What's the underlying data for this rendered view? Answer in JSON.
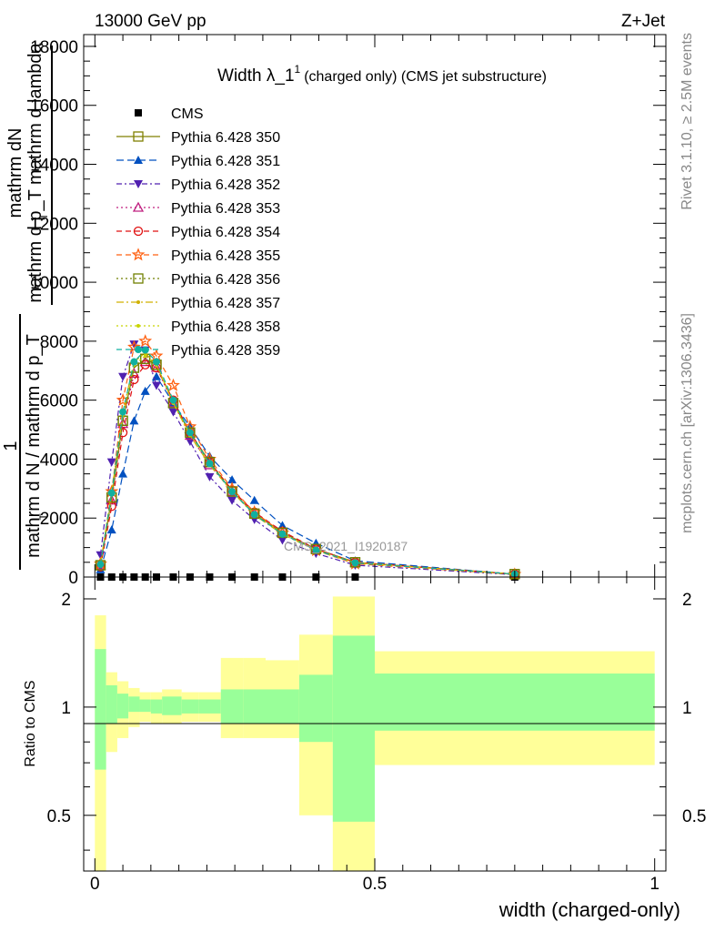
{
  "header": {
    "left": "13000 GeV pp",
    "right": "Z+Jet"
  },
  "main_plot": {
    "title_main": "Width λ_1",
    "title_sup": "1",
    "title_sub": "(charged only) (CMS jet substructure)",
    "ylabel_lines": [
      "mathrm dN",
      "mathrm d p_T mathrm d lambda",
      "1",
      "mathrm d N / mathrm d p_T"
    ],
    "ylabel_T": "T",
    "watermark": "CMS_2021_I1920187"
  },
  "ratio_plot": {
    "ylabel": "Ratio to CMS",
    "xlabel": "width (charged-only)"
  },
  "side_labels": {
    "rivet": "Rivet 3.1.10, ≥ 2.5M events",
    "mcplots": "mcplots.cern.ch [arXiv:1306.3436]"
  },
  "chart_data": {
    "type": "line",
    "xlim": [
      -0.02,
      1.02
    ],
    "ylim_main": [
      0,
      18400
    ],
    "yticks_main": [
      0,
      2000,
      4000,
      6000,
      8000,
      10000,
      12000,
      14000,
      16000,
      18000
    ],
    "ylim_ratio": [
      0.35,
      2.3
    ],
    "yticks_ratio": [
      0.5,
      1,
      2
    ],
    "xticks": [
      0,
      0.5,
      1
    ],
    "x": [
      0.01,
      0.03,
      0.05,
      0.07,
      0.09,
      0.11,
      0.14,
      0.17,
      0.205,
      0.245,
      0.285,
      0.335,
      0.395,
      0.465,
      0.75
    ],
    "bin_edges": [
      0.0,
      0.02,
      0.04,
      0.06,
      0.08,
      0.1,
      0.12,
      0.155,
      0.185,
      0.225,
      0.265,
      0.305,
      0.365,
      0.425,
      0.5,
      1.0
    ],
    "series": [
      {
        "name": "CMS",
        "color": "#000000",
        "marker": "square-filled",
        "dash": "none",
        "values": [
          0,
          0,
          0,
          0,
          0,
          0,
          0,
          0,
          0,
          0,
          0,
          0,
          0,
          0,
          0
        ]
      },
      {
        "name": "Pythia 6.428 350",
        "color": "#808000",
        "marker": "square-open",
        "dash": "solid",
        "values": [
          400,
          2700,
          5300,
          7100,
          7400,
          7200,
          5900,
          4900,
          3900,
          2900,
          2150,
          1500,
          950,
          500,
          100
        ]
      },
      {
        "name": "Pythia 6.428 351",
        "color": "#0050c0",
        "marker": "triangle-up-filled",
        "dash": "8,4",
        "values": [
          250,
          1600,
          3500,
          5300,
          6300,
          6800,
          5900,
          5100,
          4100,
          3300,
          2600,
          1750,
          1150,
          550,
          100
        ]
      },
      {
        "name": "Pythia 6.428 352",
        "color": "#5020b0",
        "marker": "triangle-down-filled",
        "dash": "6,3,2,3",
        "values": [
          750,
          3900,
          6800,
          7900,
          7700,
          6500,
          5600,
          4600,
          3400,
          2600,
          1950,
          1250,
          800,
          400,
          80
        ]
      },
      {
        "name": "Pythia 6.428 353",
        "color": "#c02080",
        "marker": "triangle-up-open",
        "dash": "2,3",
        "values": [
          400,
          2600,
          5200,
          6900,
          7300,
          7100,
          5900,
          4800,
          3800,
          2900,
          2150,
          1500,
          950,
          500,
          100
        ]
      },
      {
        "name": "Pythia 6.428 354",
        "color": "#e01010",
        "marker": "circle-open",
        "dash": "6,4",
        "values": [
          350,
          2400,
          4900,
          6700,
          7200,
          7100,
          6000,
          4900,
          3900,
          2950,
          2200,
          1550,
          950,
          500,
          100
        ]
      },
      {
        "name": "Pythia 6.428 355",
        "color": "#ff6010",
        "marker": "star-open",
        "dash": "6,4",
        "values": [
          450,
          2900,
          6000,
          7800,
          8000,
          7500,
          6500,
          5100,
          4000,
          3000,
          2200,
          1500,
          900,
          450,
          90
        ]
      },
      {
        "name": "Pythia 6.428 356",
        "color": "#708000",
        "marker": "square-open",
        "dash": "2,3",
        "values": [
          400,
          2700,
          5300,
          7100,
          7400,
          7200,
          5900,
          4900,
          3900,
          2900,
          2150,
          1500,
          950,
          500,
          100
        ]
      },
      {
        "name": "Pythia 6.428 357",
        "color": "#d0b000",
        "marker": "dot",
        "dash": "8,3,2,3",
        "values": [
          450,
          2900,
          5600,
          7300,
          7600,
          7200,
          5900,
          4800,
          3800,
          2900,
          2100,
          1450,
          900,
          480,
          100
        ]
      },
      {
        "name": "Pythia 6.428 358",
        "color": "#c8d400",
        "marker": "dot",
        "dash": "2,3",
        "values": [
          420,
          2800,
          5500,
          7200,
          7500,
          7200,
          5900,
          4850,
          3850,
          2900,
          2150,
          1480,
          920,
          490,
          100
        ]
      },
      {
        "name": "Pythia 6.428 359",
        "color": "#10b0a0",
        "marker": "circle-filled",
        "dash": "6,4",
        "values": [
          430,
          2850,
          5600,
          7300,
          7700,
          7300,
          6000,
          4900,
          3850,
          2900,
          2120,
          1460,
          910,
          480,
          100
        ]
      }
    ],
    "ratio_bands": {
      "inner": [
        [
          0.67,
          1.45
        ],
        [
          0.9,
          1.15
        ],
        [
          0.93,
          1.09
        ],
        [
          0.97,
          1.07
        ],
        [
          0.97,
          1.05
        ],
        [
          0.96,
          1.05
        ],
        [
          0.95,
          1.07
        ],
        [
          0.96,
          1.05
        ],
        [
          0.96,
          1.05
        ],
        [
          0.9,
          1.12
        ],
        [
          0.9,
          1.12
        ],
        [
          0.9,
          1.12
        ],
        [
          0.8,
          1.23
        ],
        [
          0.48,
          1.58
        ],
        [
          0.86,
          1.24
        ]
      ],
      "outer": [
        [
          0.33,
          1.8
        ],
        [
          0.75,
          1.25
        ],
        [
          0.82,
          1.18
        ],
        [
          0.88,
          1.13
        ],
        [
          0.91,
          1.1
        ],
        [
          0.9,
          1.1
        ],
        [
          0.9,
          1.12
        ],
        [
          0.91,
          1.1
        ],
        [
          0.91,
          1.1
        ],
        [
          0.82,
          1.37
        ],
        [
          0.82,
          1.37
        ],
        [
          0.82,
          1.35
        ],
        [
          0.5,
          1.59
        ],
        [
          0.33,
          2.03
        ],
        [
          0.69,
          1.43
        ]
      ],
      "inner_color": "#99ff99",
      "outer_color": "#ffff99"
    },
    "grid": false,
    "legend_position": "top-left"
  }
}
